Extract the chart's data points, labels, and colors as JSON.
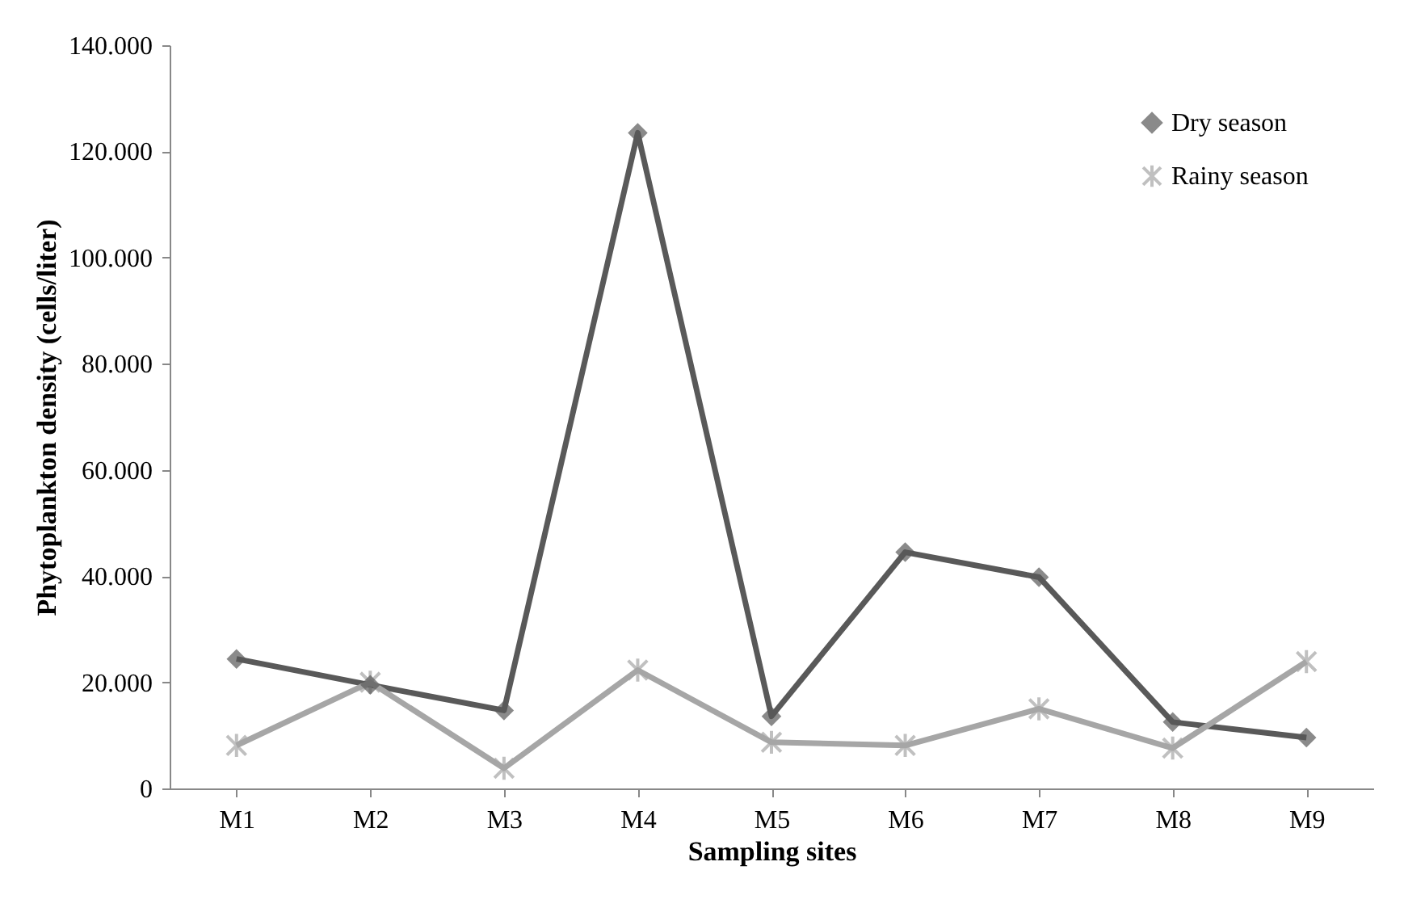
{
  "chart_data": {
    "type": "line",
    "xlabel": "Sampling sites",
    "ylabel": "Phytoplankton density (cells/liter)",
    "categories": [
      "M1",
      "M2",
      "M3",
      "M4",
      "M5",
      "M6",
      "M7",
      "M8",
      "M9"
    ],
    "series": [
      {
        "name": "Dry season",
        "color": "#595959",
        "marker": "diamond",
        "values": [
          24400,
          19500,
          14700,
          123500,
          13600,
          44500,
          39800,
          12500,
          9600
        ]
      },
      {
        "name": "Rainy season",
        "color": "#a6a6a6",
        "marker": "cross",
        "values": [
          8100,
          20000,
          3800,
          22300,
          8700,
          8100,
          15000,
          7600,
          23900
        ]
      }
    ],
    "ylim": [
      0,
      140000
    ],
    "yticks": [
      0,
      {
        "value": 20000,
        "label": "20.000"
      },
      {
        "value": 40000,
        "label": "40.000"
      },
      {
        "value": 60000,
        "label": "60.000"
      },
      {
        "value": 80000,
        "label": "80.000"
      },
      {
        "value": 100000,
        "label": "100.000"
      },
      {
        "value": 120000,
        "label": "120.000"
      },
      {
        "value": 140000,
        "label": "140.000"
      }
    ],
    "grid": false,
    "legend": "top right",
    "line_style": "solid"
  }
}
